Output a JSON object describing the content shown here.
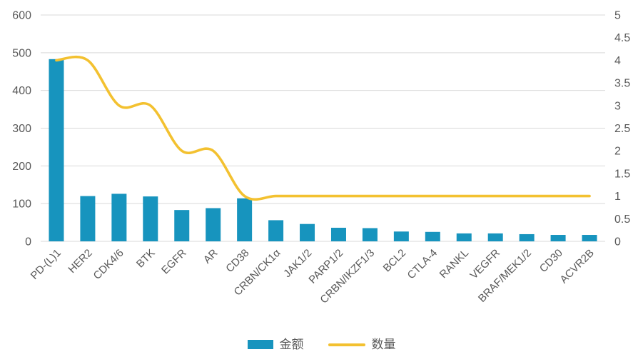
{
  "chart_data": {
    "type": "bar",
    "subtype": "combo-bar-line",
    "title": "",
    "xlabel": "",
    "ylabel": "",
    "grid": true,
    "legend_position": "bottom",
    "categories": [
      "PD-(L)1",
      "HER2",
      "CDK4/6",
      "BTK",
      "EGFR",
      "AR",
      "CD38",
      "CRBN/CK1α",
      "JAK1/2",
      "PARP1/2",
      "CRBN/IKZF1/3",
      "BCL2",
      "CTLA-4",
      "RANKL",
      "VEGFR",
      "BRAF/MEK1/2",
      "CD30",
      "ACVR2B"
    ],
    "series": [
      {
        "name": "金额",
        "type": "bar",
        "axis": "left",
        "color": "#1794BE",
        "values": [
          483,
          120,
          126,
          119,
          83,
          88,
          114,
          56,
          46,
          36,
          35,
          26,
          25,
          21,
          21,
          19,
          17,
          17
        ]
      },
      {
        "name": "数量",
        "type": "line",
        "axis": "right",
        "smooth": true,
        "color": "#F3C130",
        "values": [
          4,
          4,
          3,
          3,
          2,
          2,
          1,
          1,
          1,
          1,
          1,
          1,
          1,
          1,
          1,
          1,
          1,
          1
        ]
      }
    ],
    "left_axis": {
      "min": 0,
      "max": 600,
      "tick_values": [
        0,
        100,
        200,
        300,
        400,
        500,
        600
      ],
      "tick_labels": [
        "0",
        "100",
        "200",
        "300",
        "400",
        "500",
        "600"
      ]
    },
    "right_axis": {
      "min": 0,
      "max": 5,
      "tick_values": [
        0,
        0.5,
        1,
        1.5,
        2,
        2.5,
        3,
        3.5,
        4,
        4.5,
        5
      ],
      "tick_labels": [
        "0",
        "0.5",
        "1",
        "1.5",
        "2",
        "2.5",
        "3",
        "3.5",
        "4",
        "4.5",
        "5"
      ]
    },
    "style": {
      "gridline_color": "#D9D9D9",
      "tick_text_color": "#595959",
      "category_text_color": "#595959",
      "background": "#FFFFFF"
    }
  }
}
